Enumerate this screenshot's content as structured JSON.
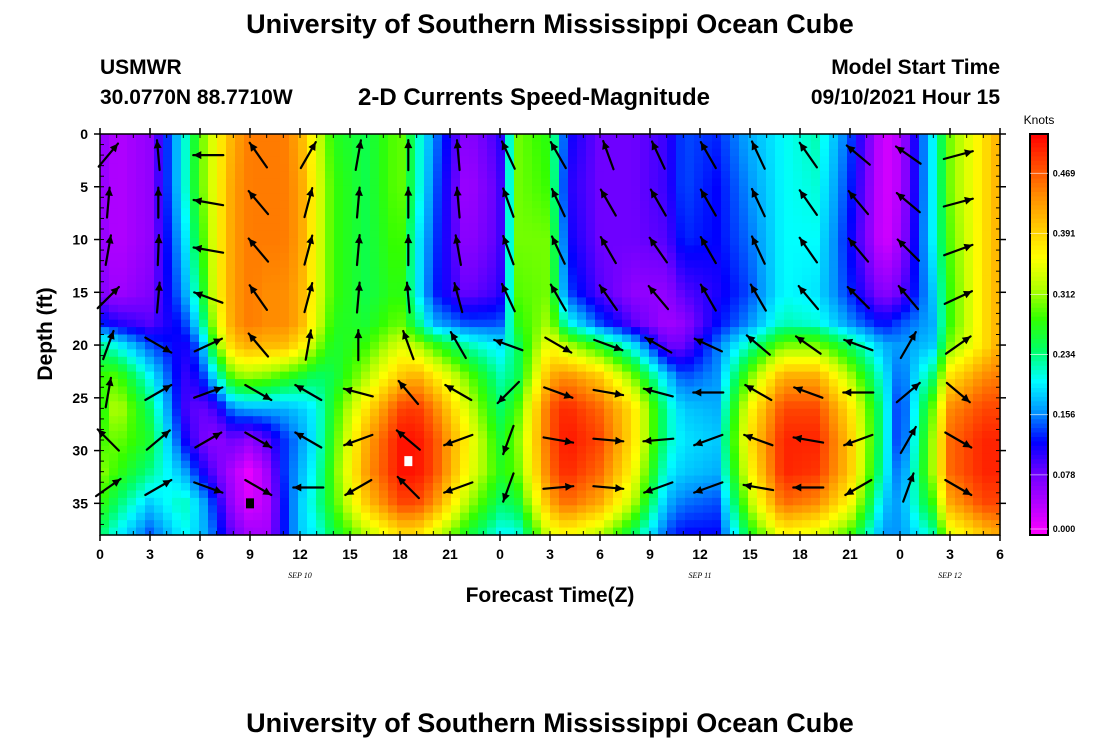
{
  "header": {
    "title": "University of Southern Mississippi Ocean Cube",
    "station": "USMWR",
    "coords": "30.0770N  88.7710W",
    "subtitle": "2-D Currents Speed-Magnitude",
    "model_start_label": "Model Start Time",
    "model_start_value": "09/10/2021 Hour 15"
  },
  "footer": {
    "title": "University of Southern Mississippi Ocean Cube"
  },
  "chart_data": {
    "type": "heatmap",
    "title": "2-D Currents Speed-Magnitude",
    "xlabel": "Forecast Time(Z)",
    "ylabel": "Depth (ft)",
    "x_unit": "hours since 09/10/2021 00Z",
    "x_range": [
      0,
      54
    ],
    "x_ticks": [
      0,
      3,
      6,
      9,
      12,
      15,
      18,
      21,
      24,
      27,
      30,
      33,
      36,
      39,
      42,
      45,
      48,
      51,
      54
    ],
    "x_tick_labels": [
      "0",
      "3",
      "6",
      "9",
      "12",
      "15",
      "18",
      "21",
      "0",
      "3",
      "6",
      "9",
      "12",
      "15",
      "18",
      "21",
      "0",
      "3",
      "6"
    ],
    "date_labels": [
      {
        "hour": 12,
        "text": "SEP 10"
      },
      {
        "hour": 36,
        "text": "SEP 11"
      },
      {
        "hour": 51,
        "text": "SEP 12"
      }
    ],
    "y_range": [
      0,
      38
    ],
    "y_ticks": [
      0,
      5,
      10,
      15,
      20,
      25,
      30,
      35
    ],
    "y_tick_labels": [
      "0",
      "5",
      "10",
      "15",
      "20",
      "25",
      "30",
      "35"
    ],
    "colorbar": {
      "unit": "Knots",
      "min": 0,
      "max": 0.52,
      "ticks": [
        0.0,
        0.078,
        0.156,
        0.234,
        0.312,
        0.391,
        0.469
      ],
      "tick_labels": [
        "0.000",
        "0.078",
        "0.156",
        "0.234",
        "0.312",
        "0.391",
        "0.469"
      ],
      "colors": [
        "#ff00ff",
        "#b400ff",
        "#6e00ff",
        "#0000ff",
        "#0096ff",
        "#00ffff",
        "#00ff64",
        "#32ff00",
        "#b4ff00",
        "#ffff00",
        "#ffc800",
        "#ff8c00",
        "#ff4600",
        "#ff0000"
      ]
    },
    "speed_columns": {
      "hours": [
        0,
        1,
        3,
        5,
        6,
        7,
        8,
        9,
        10,
        11,
        12,
        13,
        14,
        16,
        18,
        19,
        20,
        22,
        24,
        25,
        27,
        28,
        30,
        32,
        34,
        35,
        37,
        39,
        41,
        43,
        45,
        47,
        48,
        50,
        51,
        53,
        54
      ],
      "depths": [
        0,
        5,
        10,
        15,
        18,
        20,
        23,
        26,
        29,
        32,
        35,
        38
      ],
      "values": [
        [
          0.06,
          0.06,
          0.06,
          0.07,
          0.13,
          0.23,
          0.28,
          0.26,
          0.28,
          0.31,
          0.28,
          0.24
        ],
        [
          0.04,
          0.04,
          0.04,
          0.05,
          0.11,
          0.2,
          0.29,
          0.33,
          0.3,
          0.28,
          0.24,
          0.2
        ],
        [
          0.06,
          0.06,
          0.06,
          0.07,
          0.09,
          0.14,
          0.2,
          0.24,
          0.26,
          0.23,
          0.18,
          0.14
        ],
        [
          0.2,
          0.2,
          0.18,
          0.16,
          0.13,
          0.11,
          0.1,
          0.1,
          0.12,
          0.17,
          0.22,
          0.2
        ],
        [
          0.29,
          0.29,
          0.27,
          0.24,
          0.2,
          0.15,
          0.12,
          0.08,
          0.08,
          0.12,
          0.18,
          0.18
        ],
        [
          0.36,
          0.36,
          0.36,
          0.36,
          0.34,
          0.3,
          0.2,
          0.1,
          0.06,
          0.08,
          0.12,
          0.14
        ],
        [
          0.42,
          0.43,
          0.43,
          0.43,
          0.43,
          0.4,
          0.3,
          0.16,
          0.08,
          0.04,
          0.05,
          0.08
        ],
        [
          0.45,
          0.45,
          0.45,
          0.45,
          0.45,
          0.42,
          0.31,
          0.17,
          0.06,
          0.01,
          0.02,
          0.05
        ],
        [
          0.45,
          0.45,
          0.45,
          0.44,
          0.44,
          0.41,
          0.3,
          0.17,
          0.09,
          0.05,
          0.04,
          0.05
        ],
        [
          0.45,
          0.45,
          0.45,
          0.44,
          0.44,
          0.41,
          0.28,
          0.17,
          0.13,
          0.13,
          0.12,
          0.12
        ],
        [
          0.42,
          0.43,
          0.43,
          0.42,
          0.42,
          0.38,
          0.26,
          0.18,
          0.16,
          0.17,
          0.18,
          0.18
        ],
        [
          0.34,
          0.35,
          0.35,
          0.35,
          0.34,
          0.31,
          0.24,
          0.2,
          0.2,
          0.21,
          0.22,
          0.2
        ],
        [
          0.27,
          0.28,
          0.28,
          0.28,
          0.27,
          0.26,
          0.25,
          0.27,
          0.28,
          0.29,
          0.28,
          0.25
        ],
        [
          0.25,
          0.25,
          0.25,
          0.25,
          0.26,
          0.28,
          0.32,
          0.38,
          0.42,
          0.43,
          0.4,
          0.32
        ],
        [
          0.3,
          0.3,
          0.29,
          0.28,
          0.3,
          0.34,
          0.4,
          0.48,
          0.51,
          0.51,
          0.48,
          0.38
        ],
        [
          0.22,
          0.22,
          0.2,
          0.2,
          0.24,
          0.32,
          0.42,
          0.49,
          0.51,
          0.51,
          0.48,
          0.38
        ],
        [
          0.16,
          0.15,
          0.14,
          0.13,
          0.17,
          0.28,
          0.38,
          0.45,
          0.48,
          0.48,
          0.44,
          0.34
        ],
        [
          0.06,
          0.05,
          0.06,
          0.08,
          0.14,
          0.22,
          0.3,
          0.34,
          0.37,
          0.36,
          0.32,
          0.26
        ],
        [
          0.1,
          0.09,
          0.09,
          0.1,
          0.14,
          0.19,
          0.22,
          0.24,
          0.26,
          0.27,
          0.24,
          0.2
        ],
        [
          0.3,
          0.3,
          0.3,
          0.29,
          0.27,
          0.24,
          0.24,
          0.28,
          0.3,
          0.29,
          0.25,
          0.2
        ],
        [
          0.27,
          0.28,
          0.3,
          0.3,
          0.32,
          0.36,
          0.42,
          0.47,
          0.47,
          0.46,
          0.42,
          0.34
        ],
        [
          0.12,
          0.11,
          0.12,
          0.14,
          0.21,
          0.32,
          0.44,
          0.5,
          0.51,
          0.5,
          0.46,
          0.36
        ],
        [
          0.08,
          0.08,
          0.08,
          0.09,
          0.14,
          0.26,
          0.4,
          0.46,
          0.48,
          0.46,
          0.42,
          0.32
        ],
        [
          0.08,
          0.08,
          0.08,
          0.06,
          0.09,
          0.19,
          0.3,
          0.38,
          0.38,
          0.36,
          0.32,
          0.24
        ],
        [
          0.1,
          0.1,
          0.09,
          0.06,
          0.05,
          0.08,
          0.18,
          0.22,
          0.22,
          0.2,
          0.17,
          0.14
        ],
        [
          0.14,
          0.14,
          0.13,
          0.09,
          0.06,
          0.08,
          0.14,
          0.18,
          0.19,
          0.18,
          0.15,
          0.12
        ],
        [
          0.13,
          0.12,
          0.12,
          0.11,
          0.12,
          0.15,
          0.16,
          0.17,
          0.18,
          0.17,
          0.14,
          0.12
        ],
        [
          0.17,
          0.16,
          0.15,
          0.14,
          0.16,
          0.22,
          0.3,
          0.36,
          0.38,
          0.36,
          0.32,
          0.26
        ],
        [
          0.2,
          0.2,
          0.2,
          0.2,
          0.22,
          0.3,
          0.42,
          0.48,
          0.5,
          0.5,
          0.46,
          0.36
        ],
        [
          0.22,
          0.21,
          0.2,
          0.19,
          0.21,
          0.3,
          0.42,
          0.48,
          0.5,
          0.49,
          0.44,
          0.34
        ],
        [
          0.14,
          0.13,
          0.12,
          0.13,
          0.16,
          0.24,
          0.32,
          0.38,
          0.4,
          0.4,
          0.36,
          0.28
        ],
        [
          0.02,
          0.02,
          0.02,
          0.06,
          0.12,
          0.17,
          0.2,
          0.22,
          0.22,
          0.21,
          0.18,
          0.16
        ],
        [
          0.04,
          0.04,
          0.05,
          0.08,
          0.14,
          0.16,
          0.14,
          0.12,
          0.12,
          0.14,
          0.16,
          0.16
        ],
        [
          0.2,
          0.2,
          0.2,
          0.18,
          0.17,
          0.18,
          0.24,
          0.3,
          0.32,
          0.32,
          0.28,
          0.22
        ],
        [
          0.3,
          0.3,
          0.29,
          0.28,
          0.28,
          0.3,
          0.38,
          0.44,
          0.46,
          0.46,
          0.42,
          0.34
        ],
        [
          0.38,
          0.38,
          0.38,
          0.38,
          0.38,
          0.38,
          0.44,
          0.48,
          0.5,
          0.5,
          0.48,
          0.4
        ],
        [
          0.42,
          0.42,
          0.42,
          0.42,
          0.42,
          0.42,
          0.45,
          0.48,
          0.5,
          0.5,
          0.48,
          0.42
        ]
      ]
    },
    "vectors": {
      "hours": [
        0.5,
        3.5,
        6.5,
        9.5,
        12.5,
        15.5,
        18.5,
        21.5,
        24.5,
        27.5,
        30.5,
        33.5,
        36.5,
        39.5,
        42.5,
        45.5,
        48.5,
        51.5
      ],
      "depths": [
        2,
        6.5,
        11,
        15.5,
        20,
        24.5,
        29,
        33.5
      ],
      "angles_deg": [
        [
          50,
          95,
          180,
          125,
          60,
          80,
          90,
          95,
          115,
          120,
          110,
          115,
          120,
          115,
          125,
          140,
          145,
          15
        ],
        [
          85,
          90,
          170,
          130,
          75,
          85,
          90,
          95,
          110,
          115,
          120,
          120,
          120,
          115,
          125,
          130,
          140,
          15
        ],
        [
          80,
          88,
          170,
          130,
          75,
          85,
          90,
          100,
          110,
          115,
          120,
          125,
          120,
          115,
          125,
          130,
          135,
          20
        ],
        [
          45,
          85,
          160,
          125,
          75,
          85,
          95,
          105,
          115,
          120,
          125,
          130,
          120,
          120,
          130,
          135,
          130,
          25
        ],
        [
          70,
          330,
          25,
          130,
          80,
          90,
          110,
          120,
          160,
          330,
          340,
          150,
          155,
          140,
          145,
          160,
          60,
          35
        ],
        [
          80,
          30,
          20,
          330,
          150,
          165,
          130,
          150,
          225,
          340,
          350,
          165,
          180,
          150,
          160,
          180,
          40,
          320
        ],
        [
          135,
          40,
          30,
          330,
          150,
          200,
          140,
          200,
          250,
          350,
          355,
          185,
          200,
          160,
          170,
          200,
          60,
          330
        ],
        [
          35,
          30,
          340,
          330,
          180,
          210,
          135,
          200,
          250,
          5,
          355,
          200,
          200,
          170,
          180,
          210,
          70,
          330
        ]
      ],
      "speeds_knots": [
        [
          0.22,
          0.12,
          0.26,
          0.42,
          0.44,
          0.27,
          0.15,
          0.05,
          0.05,
          0.17,
          0.09,
          0.06,
          0.12,
          0.18,
          0.14,
          0.04,
          0.06,
          0.34
        ],
        [
          0.2,
          0.16,
          0.27,
          0.44,
          0.44,
          0.28,
          0.13,
          0.05,
          0.06,
          0.17,
          0.09,
          0.05,
          0.13,
          0.19,
          0.15,
          0.05,
          0.07,
          0.36
        ],
        [
          0.18,
          0.17,
          0.27,
          0.43,
          0.44,
          0.28,
          0.13,
          0.06,
          0.06,
          0.17,
          0.09,
          0.05,
          0.13,
          0.2,
          0.15,
          0.05,
          0.08,
          0.37
        ],
        [
          0.17,
          0.15,
          0.26,
          0.42,
          0.43,
          0.28,
          0.14,
          0.07,
          0.07,
          0.2,
          0.1,
          0.05,
          0.13,
          0.21,
          0.15,
          0.06,
          0.09,
          0.37
        ],
        [
          0.2,
          0.18,
          0.15,
          0.38,
          0.38,
          0.28,
          0.3,
          0.22,
          0.2,
          0.33,
          0.25,
          0.12,
          0.15,
          0.27,
          0.2,
          0.15,
          0.15,
          0.35
        ],
        [
          0.26,
          0.24,
          0.17,
          0.21,
          0.24,
          0.3,
          0.46,
          0.3,
          0.24,
          0.44,
          0.39,
          0.18,
          0.15,
          0.38,
          0.35,
          0.22,
          0.2,
          0.4
        ],
        [
          0.27,
          0.27,
          0.15,
          0.12,
          0.2,
          0.33,
          0.5,
          0.35,
          0.26,
          0.47,
          0.46,
          0.17,
          0.18,
          0.45,
          0.44,
          0.22,
          0.2,
          0.47
        ],
        [
          0.25,
          0.22,
          0.08,
          0.05,
          0.18,
          0.36,
          0.5,
          0.34,
          0.22,
          0.45,
          0.4,
          0.14,
          0.16,
          0.42,
          0.4,
          0.15,
          0.17,
          0.44
        ]
      ]
    },
    "markers": [
      {
        "hour": 18.5,
        "depth": 31,
        "color": "#ffffff"
      },
      {
        "hour": 9,
        "depth": 35,
        "color": "#000000"
      }
    ]
  }
}
